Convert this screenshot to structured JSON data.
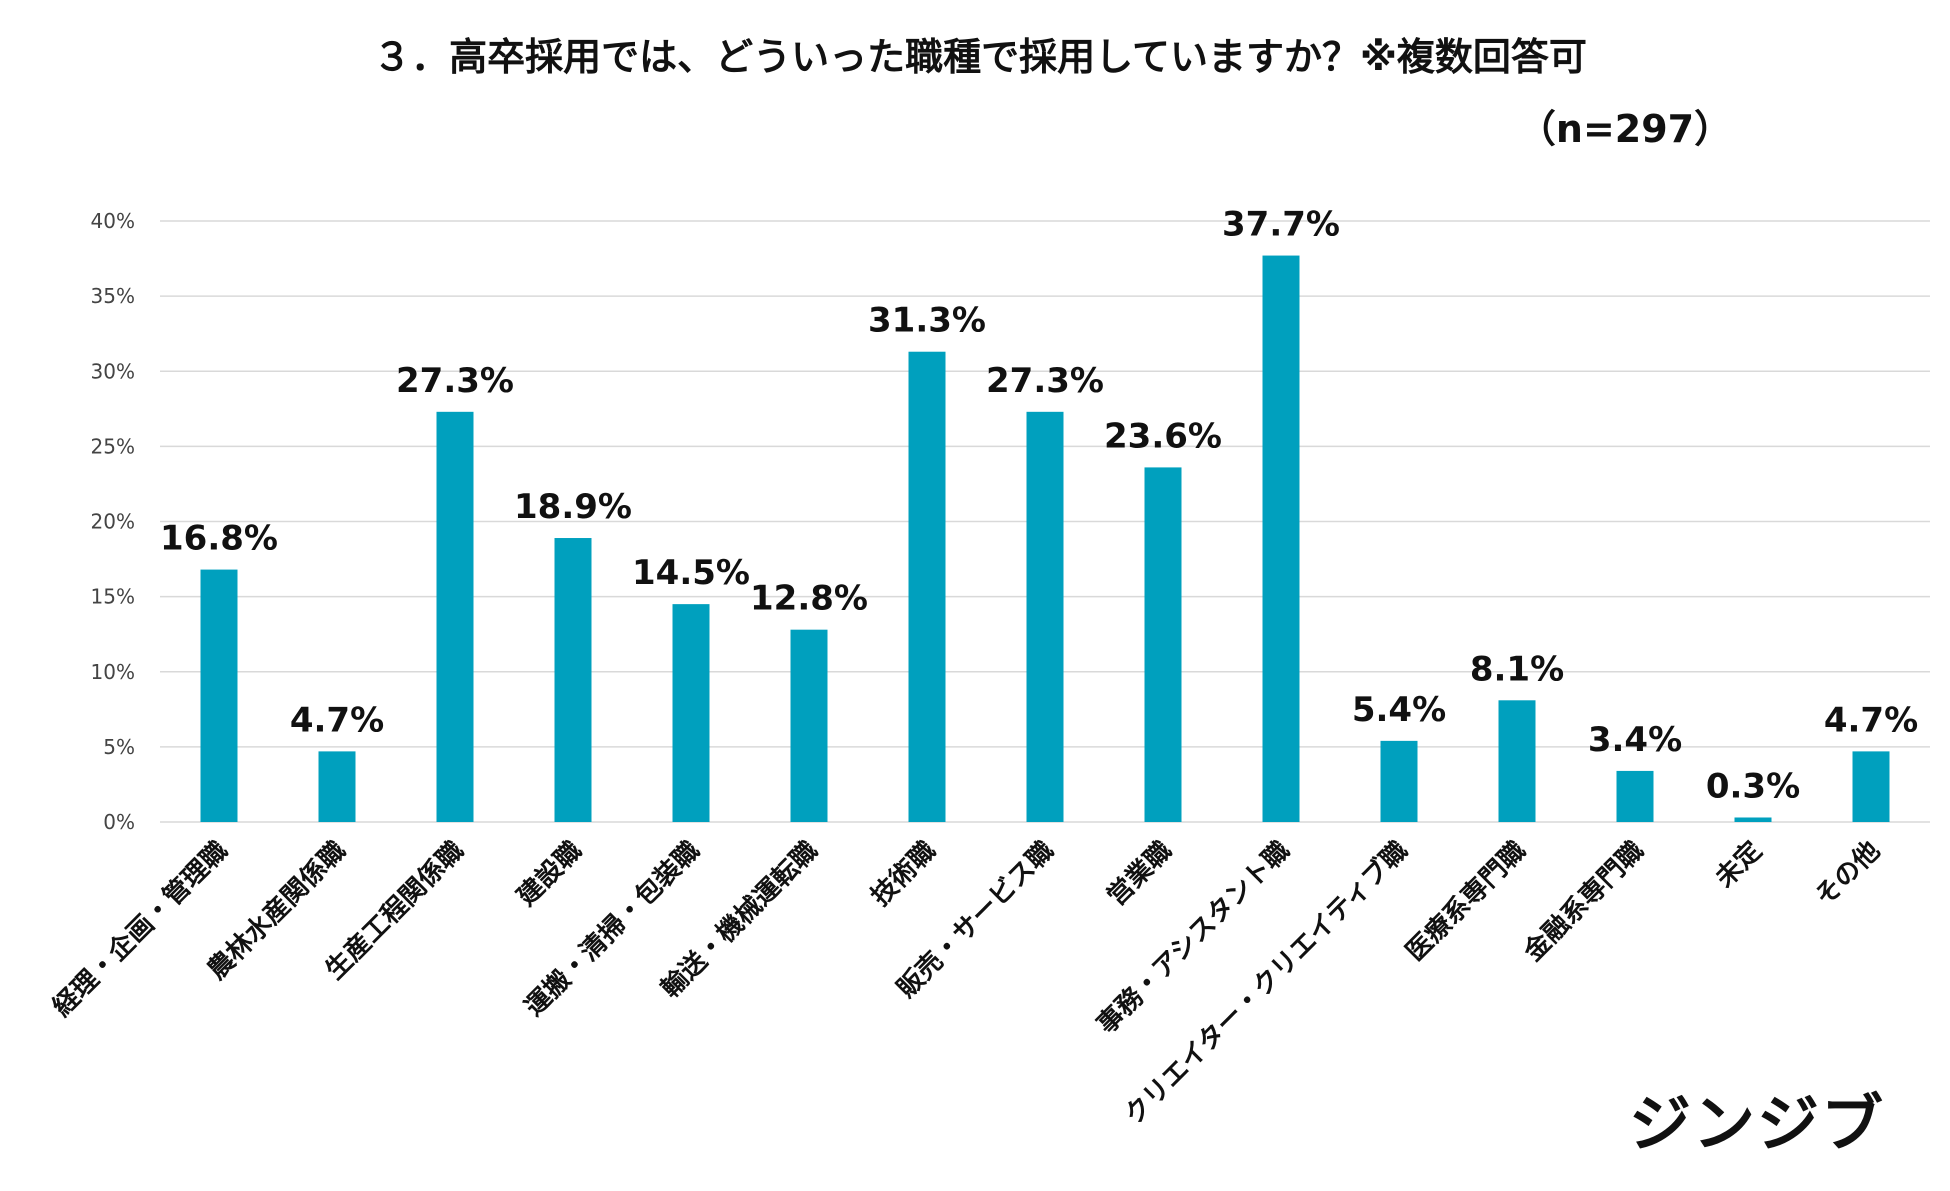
{
  "chart_data": {
    "type": "bar",
    "title": "３．高卒採用では、どういった職種で採用していますか？※複数回答可",
    "subtitle": "（n=297）",
    "categories": [
      "経理・企画・管理職",
      "農林水産関係職",
      "生産工程関係職",
      "建設職",
      "運搬・清掃・包装職",
      "輸送・機械運転職",
      "技術職",
      "販売・サービス職",
      "営業職",
      "事務・アシスタント職",
      "クリエイター・クリエイティブ職",
      "医療系専門職",
      "金融系専門職",
      "未定",
      "その他"
    ],
    "values": [
      16.8,
      4.7,
      27.3,
      18.9,
      14.5,
      12.8,
      31.3,
      27.3,
      23.6,
      37.7,
      5.4,
      8.1,
      3.4,
      0.3,
      4.7
    ],
    "data_labels": [
      "16.8%",
      "4.7%",
      "27.3%",
      "18.9%",
      "14.5%",
      "12.8%",
      "31.3%",
      "27.3%",
      "23.6%",
      "37.7%",
      "5.4%",
      "8.1%",
      "3.4%",
      "0.3%",
      "4.7%"
    ],
    "yticks": [
      0,
      5,
      10,
      15,
      20,
      25,
      30,
      35,
      40
    ],
    "ytick_labels": [
      "0%",
      "5%",
      "10%",
      "15%",
      "20%",
      "25%",
      "30%",
      "35%",
      "40%"
    ],
    "ylim": [
      0,
      40
    ],
    "xlabel": "",
    "ylabel": "",
    "grid": true,
    "colors": {
      "bar": "#00A0BE",
      "grid": "#D9D9D9",
      "text": "#111111",
      "tick": "#444444"
    }
  },
  "brand": {
    "logo": "ジンジブ"
  }
}
